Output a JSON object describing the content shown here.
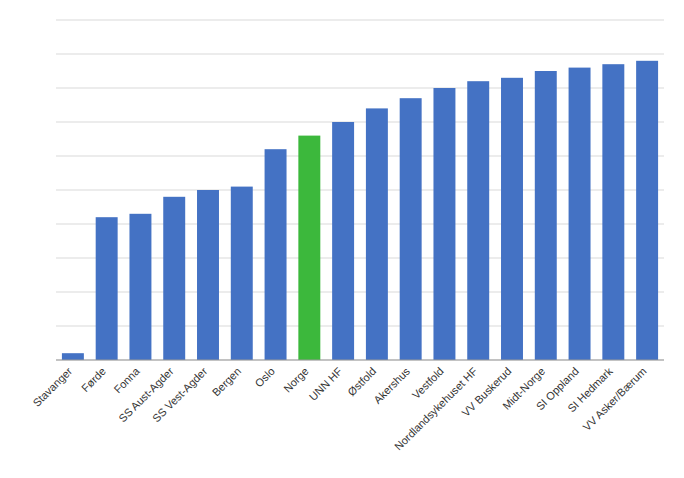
{
  "chart_data": {
    "type": "bar",
    "categories": [
      "Stavanger",
      "Førde",
      "Fonna",
      "SS Aust-Agder",
      "SS Vest-Agder",
      "Bergen",
      "Oslo",
      "Norge",
      "UNN HF",
      "Østfold",
      "Akershus",
      "Vestfold",
      "Nordlandsykehuset HF",
      "VV Buskerud",
      "Midt-Norge",
      "SI Oppland",
      "SI Hedmark",
      "VV Asker/Bærum"
    ],
    "values": [
      2,
      42,
      43,
      48,
      50,
      51,
      62,
      66,
      70,
      74,
      77,
      80,
      82,
      83,
      85,
      86,
      87,
      88
    ],
    "colors": [
      "#4472C4",
      "#4472C4",
      "#4472C4",
      "#4472C4",
      "#4472C4",
      "#4472C4",
      "#4472C4",
      "#3cb83c",
      "#4472C4",
      "#4472C4",
      "#4472C4",
      "#4472C4",
      "#4472C4",
      "#4472C4",
      "#4472C4",
      "#4472C4",
      "#4472C4",
      "#4472C4"
    ],
    "ylim": [
      0,
      100
    ],
    "yticks": [
      0,
      10,
      20,
      30,
      40,
      50,
      60,
      70,
      80,
      90,
      100
    ],
    "grid": true,
    "tick_labels": "x"
  }
}
